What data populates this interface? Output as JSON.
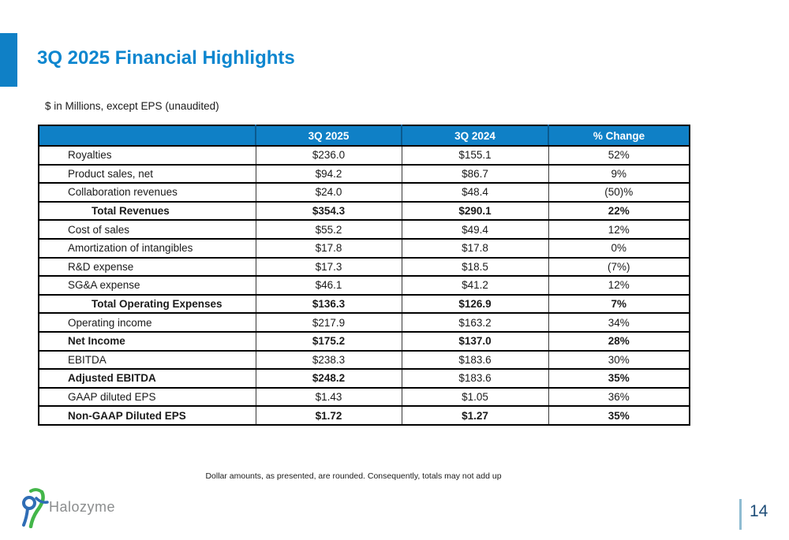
{
  "slide": {
    "title": "3Q 2025 Financial Highlights",
    "subtitle": "$ in Millions, except EPS (unaudited)",
    "footnote": "Dollar amounts, as presented, are rounded. Consequently, totals may not add up",
    "page_number": "14"
  },
  "logo": {
    "text": "Halozyme",
    "mark": "abstract-figure-logo"
  },
  "colors": {
    "accent_blue": "#0f80c6",
    "title_blue": "#0d86cf",
    "page_navy": "#1f4e79",
    "page_line": "#8fbcd2",
    "logo_blue": "#2f6db5",
    "logo_green": "#43b649",
    "logo_gray": "#8b8d8e",
    "header_text": "#ffffff"
  },
  "table": {
    "columns": [
      "",
      "3Q 2025",
      "3Q 2024",
      "% Change"
    ],
    "rows": [
      {
        "label": "Royalties",
        "q2025": "$236.0",
        "q2024": "$155.1",
        "change": "52%",
        "style": "regular"
      },
      {
        "label": "Product sales, net",
        "q2025": "$94.2",
        "q2024": "$86.7",
        "change": "9%",
        "style": "regular"
      },
      {
        "label": "Collaboration revenues",
        "q2025": "$24.0",
        "q2024": "$48.4",
        "change": "(50)%",
        "style": "regular"
      },
      {
        "label": "Total Revenues",
        "q2025": "$354.3",
        "q2024": "$290.1",
        "change": "22%",
        "style": "total"
      },
      {
        "label": "Cost of sales",
        "q2025": "$55.2",
        "q2024": "$49.4",
        "change": "12%",
        "style": "regular"
      },
      {
        "label": "Amortization of intangibles",
        "q2025": "$17.8",
        "q2024": "$17.8",
        "change": "0%",
        "style": "regular"
      },
      {
        "label": "R&D expense",
        "q2025": "$17.3",
        "q2024": "$18.5",
        "change": "(7%)",
        "style": "regular"
      },
      {
        "label": "SG&A expense",
        "q2025": "$46.1",
        "q2024": "$41.2",
        "change": "12%",
        "style": "regular"
      },
      {
        "label": "Total Operating Expenses",
        "q2025": "$136.3",
        "q2024": "$126.9",
        "change": "7%",
        "style": "total"
      },
      {
        "label": "Operating income",
        "q2025": "$217.9",
        "q2024": "$163.2",
        "change": "34%",
        "style": "regular"
      },
      {
        "label": "Net Income",
        "q2025": "$175.2",
        "q2024": "$137.0",
        "change": "28%",
        "style": "bold"
      },
      {
        "label": "EBITDA",
        "q2025": "$238.3",
        "q2024": "$183.6",
        "change": "30%",
        "style": "regular"
      },
      {
        "label": "Adjusted EBITDA",
        "q2025": "$248.2",
        "q2024": "$183.6",
        "change": "35%",
        "style": "bold",
        "plain_cells": [
          "q2024"
        ]
      },
      {
        "label": "GAAP diluted EPS",
        "q2025": "$1.43",
        "q2024": "$1.05",
        "change": "36%",
        "style": "regular"
      },
      {
        "label": "Non-GAAP Diluted EPS",
        "q2025": "$1.72",
        "q2024": "$1.27",
        "change": "35%",
        "style": "bold"
      }
    ]
  }
}
